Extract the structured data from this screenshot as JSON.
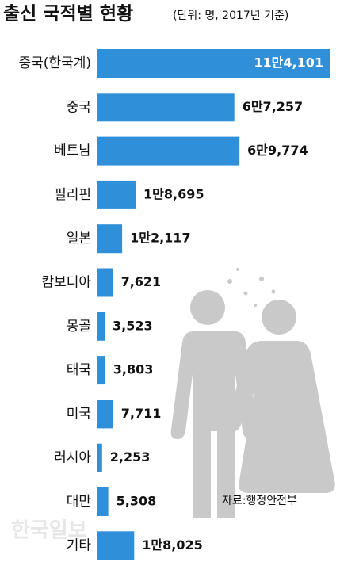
{
  "chart_data": {
    "type": "bar",
    "orientation": "horizontal",
    "title": "출신 국적별 현황",
    "subtitle": "(단위: 명, 2017년 기준)",
    "categories": [
      "중국(한국계)",
      "중국",
      "베트남",
      "필리핀",
      "일본",
      "캄보디아",
      "몽골",
      "태국",
      "미국",
      "러시아",
      "대만",
      "기타"
    ],
    "values": [
      114101,
      67257,
      69774,
      18695,
      12117,
      7621,
      3523,
      3803,
      7711,
      2253,
      5308,
      18025
    ],
    "value_labels": [
      "11만4,101",
      "6만7,257",
      "6만9,774",
      "1만8,695",
      "1만2,117",
      "7,621",
      "3,523",
      "3,803",
      "7,711",
      "2,253",
      "5,308",
      "1만8,025"
    ],
    "color": "#2f8fd8",
    "source": "자료:행정안전부",
    "watermark": "한국일보"
  }
}
